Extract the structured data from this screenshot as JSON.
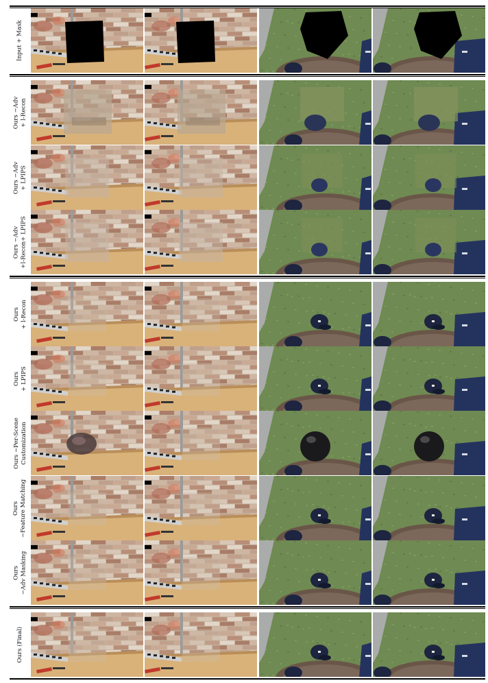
{
  "figure": {
    "rows": [
      {
        "id": "input",
        "label_lines": [
          "Input + Mask"
        ],
        "variant": "mask"
      },
      {
        "id": "no-adv-l1",
        "label_lines": [
          "Ours −Adv",
          "+ l-Recon"
        ],
        "variant": "blur"
      },
      {
        "id": "no-adv-lpips",
        "label_lines": [
          "Ours −Adv",
          "+ LPIPS"
        ],
        "variant": "ghost"
      },
      {
        "id": "no-adv-l1-lpips",
        "label_lines": [
          "Ours −Adv",
          "+l-Recon+ LPIPS"
        ],
        "variant": "ghost"
      },
      {
        "id": "l1",
        "label_lines": [
          "Ours",
          "+ l-Recon"
        ],
        "variant": "cap"
      },
      {
        "id": "lpips",
        "label_lines": [
          "Ours",
          "+ LPIPS"
        ],
        "variant": "cap"
      },
      {
        "id": "no-customization",
        "label_lines": [
          "Ours −Per-Scene",
          "Customization"
        ],
        "variant": "bag"
      },
      {
        "id": "no-feature-matching",
        "label_lines": [
          "Ours",
          "−Feature Matching"
        ],
        "variant": "cap"
      },
      {
        "id": "no-adv-masking",
        "label_lines": [
          "Ours",
          "−Adv Masking"
        ],
        "variant": "cap"
      },
      {
        "id": "final",
        "label_lines": [
          "Ours (Final)"
        ],
        "variant": "cap"
      }
    ],
    "colors": {
      "wall": "#c6b4a0",
      "desk": "#d9b27a",
      "grass": "#6f8a52",
      "manhole": "#6a5648",
      "hat": "#1d2540",
      "backpack": "#24335e"
    }
  }
}
